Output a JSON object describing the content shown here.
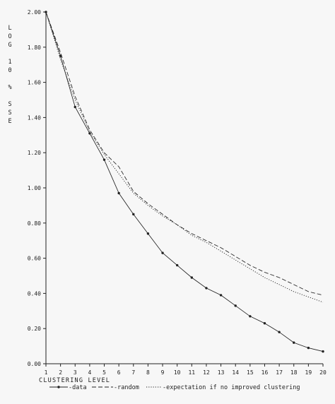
{
  "chart_data": {
    "type": "line",
    "ylabel_chars": [
      "L",
      "O",
      "G",
      "",
      "1",
      "0",
      "",
      "%",
      "",
      "S",
      "S",
      "E"
    ],
    "xlabel": "CLUSTERING LEVEL",
    "ylim": [
      0,
      2.0
    ],
    "xlim": [
      1,
      20
    ],
    "yticks": [
      "0.00",
      "0.20",
      "0.40",
      "0.60",
      "0.80",
      "1.00",
      "1.20",
      "1.40",
      "1.60",
      "1.80",
      "2.00"
    ],
    "xticks": [
      "1",
      "2",
      "3",
      "4",
      "5",
      "6",
      "7",
      "8",
      "9",
      "10",
      "11",
      "12",
      "13",
      "14",
      "15",
      "16",
      "17",
      "18",
      "19",
      "20"
    ],
    "x": [
      1,
      2,
      3,
      4,
      5,
      6,
      7,
      8,
      9,
      10,
      11,
      12,
      13,
      14,
      15,
      16,
      17,
      18,
      19,
      20
    ],
    "series": [
      {
        "name": "data",
        "style": "solid",
        "values": [
          2.0,
          1.75,
          1.46,
          1.31,
          1.16,
          0.97,
          0.85,
          0.74,
          0.63,
          0.56,
          0.49,
          0.43,
          0.39,
          0.33,
          0.27,
          0.23,
          0.18,
          0.12,
          0.09,
          0.07
        ]
      },
      {
        "name": "random",
        "style": "dashed",
        "values": [
          2.0,
          1.77,
          1.52,
          1.33,
          1.2,
          1.12,
          0.98,
          0.91,
          0.85,
          0.79,
          0.74,
          0.7,
          0.66,
          0.61,
          0.56,
          0.52,
          0.49,
          0.45,
          0.41,
          0.39
        ]
      },
      {
        "name": "expectation if no improved clustering",
        "style": "dotted",
        "values": [
          2.0,
          1.73,
          1.5,
          1.32,
          1.19,
          1.08,
          0.97,
          0.9,
          0.84,
          0.79,
          0.73,
          0.69,
          0.64,
          0.59,
          0.54,
          0.49,
          0.45,
          0.41,
          0.38,
          0.35
        ]
      }
    ],
    "dotted_data_segments": [
      [
        2,
        3
      ],
      [
        5,
        6
      ],
      [
        13,
        14
      ],
      [
        17,
        18
      ]
    ],
    "legend": {
      "placement": "bottom",
      "entries": [
        {
          "prefix": "-",
          "label": "data",
          "style": "solid"
        },
        {
          "prefix": "-",
          "label": "random",
          "style": "dashed"
        },
        {
          "prefix": "-",
          "label": "expectation if no improved clustering",
          "style": "dotted"
        }
      ]
    },
    "grid": false,
    "color": "#222222"
  }
}
